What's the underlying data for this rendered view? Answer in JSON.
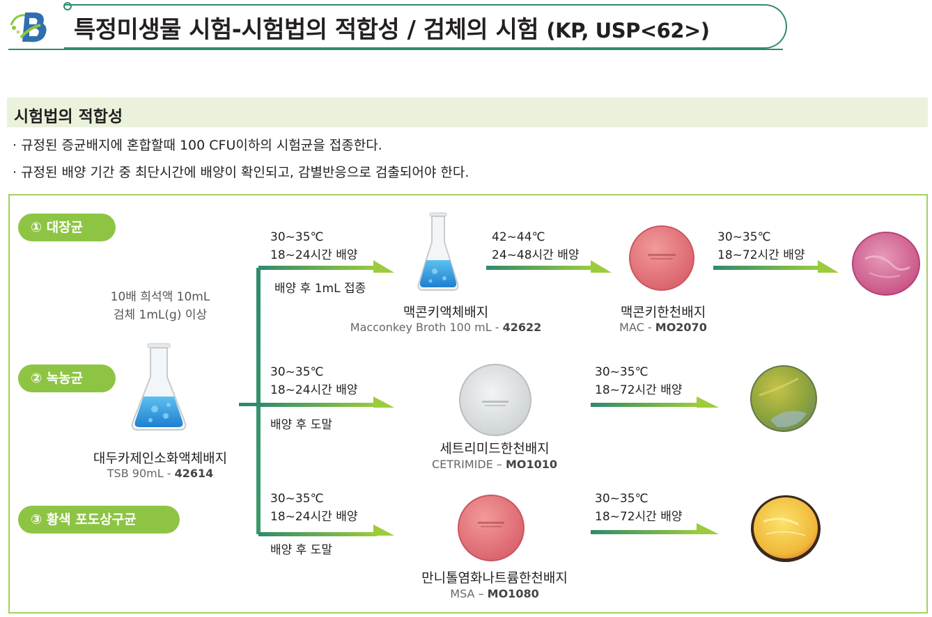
{
  "header": {
    "title": "특정미생물 시험-시험법의 적합성 / 검체의 시험",
    "title_suffix": "(KP, USP<62>)"
  },
  "section": {
    "title": "시험법의 적합성",
    "bullets": [
      "· 규정된 증균배지에 혼합할때 100 CFU이하의 시험균을 접종한다.",
      "· 규정된 배양 기간 중 최단시간에 배양이 확인되고, 감별반응으로 검출되어야 한다."
    ]
  },
  "organisms": [
    "① 대장균",
    "② 녹농균",
    "③ 황색 포도상구균"
  ],
  "source": {
    "dilution_line1": "10배 희석액 10mL",
    "dilution_line2": "검체 1mL(g) 이상",
    "name": "대두카제인소화액체배지",
    "code_prefix": "TSB 90mL - ",
    "code": "42614"
  },
  "rows": [
    {
      "step1_temp": "30~35℃",
      "step1_time": "18~24시간 배양",
      "step1_note": "배양 후 1mL 접종",
      "medium1_name": "맥콘키액체배지",
      "medium1_code_prefix": "Macconkey Broth 100 mL - ",
      "medium1_code": "42622",
      "step2_temp": "42~44℃",
      "step2_time": "24~48시간 배양",
      "medium2_name": "맥콘키한천배지",
      "medium2_code_prefix": "MAC - ",
      "medium2_code": "MO2070",
      "step3_temp": "30~35℃",
      "step3_time": "18~72시간 배양"
    },
    {
      "step1_temp": "30~35℃",
      "step1_time": "18~24시간 배양",
      "step1_note": "배양 후 도말",
      "medium_name": "세트리미드한천배지",
      "medium_code_prefix": "CETRIMIDE – ",
      "medium_code": "MO1010",
      "step2_temp": "30~35℃",
      "step2_time": "18~72시간 배양"
    },
    {
      "step1_temp": "30~35℃",
      "step1_time": "18~24시간 배양",
      "step1_note": "배양 후 도말",
      "medium_name": "만니톨염화나트륨한천배지",
      "medium_code_prefix": "MSA – ",
      "medium_code": "MO1080",
      "step2_temp": "30~35℃",
      "step2_time": "18~72시간 배양"
    }
  ],
  "colors": {
    "accent_green": "#8ec444",
    "dark_green": "#2f8a6e",
    "frame_green": "#a3cf62",
    "flask_blue": "#3aa0e0",
    "mac_plate": "#e07b7b",
    "cetrimide_plate": "#e4e7e8",
    "msa_plate": "#e47c7c"
  }
}
